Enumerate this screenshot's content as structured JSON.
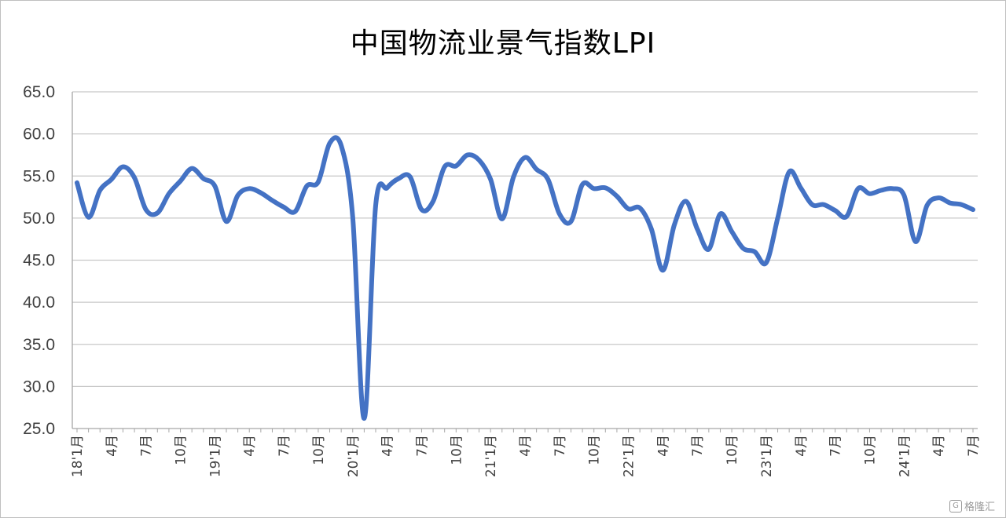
{
  "chart_data": {
    "type": "line",
    "title": "中国物流业景气指数LPI",
    "xlabel": "",
    "ylabel": "",
    "ylim": [
      25,
      65
    ],
    "yticks": [
      "65.0",
      "60.0",
      "55.0",
      "50.0",
      "45.0",
      "40.0",
      "35.0",
      "30.0",
      "25.0"
    ],
    "grid": true,
    "line_color": "#4472C4",
    "x_tick_labels": [
      "18'1月",
      "4月",
      "7月",
      "10月",
      "19'1月",
      "4月",
      "7月",
      "10月",
      "20'1月",
      "4月",
      "7月",
      "10月",
      "21'1月",
      "4月",
      "7月",
      "10月",
      "22'1月",
      "4月",
      "7月",
      "10月",
      "23'1月",
      "4月",
      "7月",
      "10月",
      "24'1月",
      "4月",
      "7月"
    ],
    "x": [
      "18'1月",
      "18'2月",
      "18'3月",
      "18'4月",
      "18'5月",
      "18'6月",
      "18'7月",
      "18'8月",
      "18'9月",
      "18'10月",
      "18'11月",
      "18'12月",
      "19'1月",
      "19'2月",
      "19'3月",
      "19'4月",
      "19'5月",
      "19'6月",
      "19'7月",
      "19'8月",
      "19'9月",
      "19'10月",
      "19'11月",
      "19'12月",
      "20'1月",
      "20'2月",
      "20'3月",
      "20'4月",
      "20'5月",
      "20'6月",
      "20'7月",
      "20'8月",
      "20'9月",
      "20'10月",
      "20'11月",
      "20'12月",
      "21'1月",
      "21'2月",
      "21'3月",
      "21'4月",
      "21'5月",
      "21'6月",
      "21'7月",
      "21'8月",
      "21'9月",
      "21'10月",
      "21'11月",
      "21'12月",
      "22'1月",
      "22'2月",
      "22'3月",
      "22'4月",
      "22'5月",
      "22'6月",
      "22'7月",
      "22'8月",
      "22'9月",
      "22'10月",
      "22'11月",
      "22'12月",
      "23'1月",
      "23'2月",
      "23'3月",
      "23'4月",
      "23'5月",
      "23'6月",
      "23'7月",
      "23'8月",
      "23'9月",
      "23'10月",
      "23'11月",
      "23'12月",
      "24'1月",
      "24'2月",
      "24'3月",
      "24'4月",
      "24'5月",
      "24'6月",
      "24'7月"
    ],
    "values": [
      54.2,
      50.1,
      53.3,
      54.6,
      56.1,
      54.8,
      51.0,
      50.6,
      52.9,
      54.4,
      55.9,
      54.7,
      53.8,
      49.6,
      52.7,
      53.5,
      53.0,
      52.1,
      51.3,
      50.8,
      53.8,
      54.3,
      58.9,
      58.6,
      50.1,
      26.2,
      51.5,
      53.6,
      54.7,
      54.9,
      51.0,
      52.0,
      56.1,
      56.2,
      57.5,
      56.9,
      54.6,
      49.9,
      54.9,
      57.2,
      55.8,
      54.6,
      50.5,
      49.6,
      54.0,
      53.5,
      53.6,
      52.6,
      51.1,
      51.2,
      48.7,
      43.8,
      49.2,
      52.0,
      48.7,
      46.3,
      50.5,
      48.4,
      46.4,
      46.0,
      44.7,
      50.0,
      55.5,
      53.6,
      51.6,
      51.6,
      50.9,
      50.2,
      53.5,
      52.9,
      53.3,
      53.5,
      52.7,
      47.2,
      51.5,
      52.4,
      51.8,
      51.6,
      51.0
    ]
  },
  "watermark": {
    "icon": "G",
    "text": "格隆汇"
  }
}
